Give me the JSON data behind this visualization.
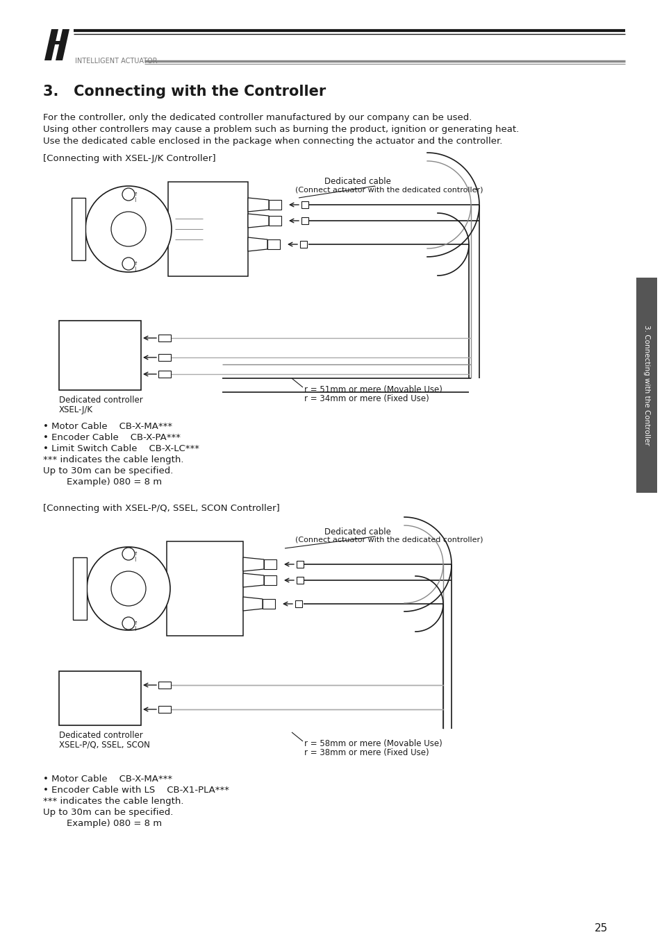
{
  "page_bg": "#ffffff",
  "title": "3.   Connecting with the Controller",
  "body_text_1": "For the controller, only the dedicated controller manufactured by our company can be used.",
  "body_text_2": "Using other controllers may cause a problem such as burning the product, ignition or generating heat.",
  "body_text_3": "Use the dedicated cable enclosed in the package when connecting the actuator and the controller.",
  "section1_header": "[Connecting with XSEL-J/K Controller]",
  "section2_header": "[Connecting with XSEL-P/Q, SSEL, SCON Controller]",
  "dedicated_cable_label": "Dedicated cable",
  "dedicated_cable_sublabel": "(Connect actuator with the dedicated controller)",
  "section1_r1": "r = 51mm or mere (Movable Use)",
  "section1_r2": "r = 34mm or mere (Fixed Use)",
  "section2_r1": "r = 58mm or mere (Movable Use)",
  "section2_r2": "r = 38mm or mere (Fixed Use)",
  "controller1_label1": "Dedicated controller",
  "controller1_label2": "XSEL-J/K",
  "controller2_label1": "Dedicated controller",
  "controller2_label2": "XSEL-P/Q, SSEL, SCON",
  "bullets_section1": [
    "• Motor Cable    CB-X-MA***",
    "• Encoder Cable    CB-X-PA***",
    "• Limit Switch Cable    CB-X-LC***",
    "*** indicates the cable length.",
    "Up to 30m can be specified.",
    "        Example) 080 = 8 m"
  ],
  "bullets_section2": [
    "• Motor Cable    CB-X-MA***",
    "• Encoder Cable with LS    CB-X1-PLA***",
    "*** indicates the cable length.",
    "Up to 30m can be specified.",
    "        Example) 080 = 8 m"
  ],
  "sidebar_text": "3. Connecting with the Controller",
  "page_number": "25"
}
